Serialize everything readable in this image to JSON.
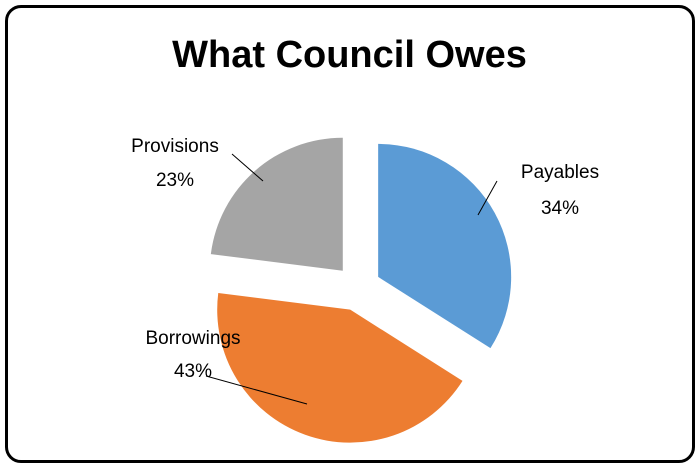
{
  "chart_data": {
    "type": "pie",
    "title": "What Council Owes",
    "slices": [
      {
        "label": "Payables",
        "value": 34,
        "value_label": "34%",
        "color": "#5b9bd5"
      },
      {
        "label": "Borrowings",
        "value": 43,
        "value_label": "43%",
        "color": "#ed7d31"
      },
      {
        "label": "Provisions",
        "value": 23,
        "value_label": "23%",
        "color": "#a5a5a5"
      }
    ],
    "exploded": true,
    "legend": "none",
    "data_labels": "outside-with-leader-lines"
  }
}
